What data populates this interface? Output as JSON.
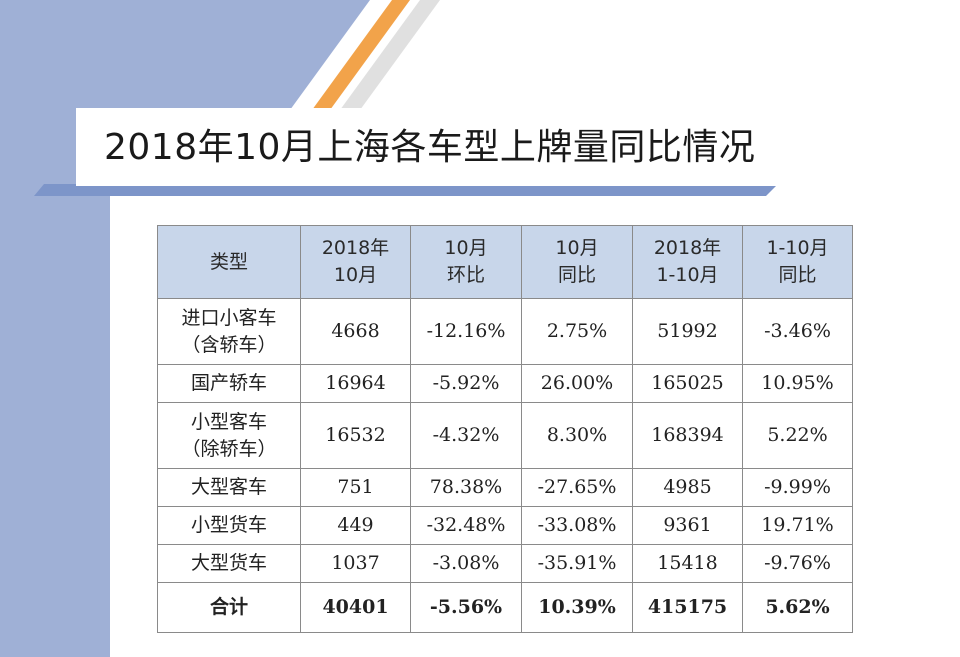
{
  "title": "2018年10月上海各车型上牌量同比情况",
  "table": {
    "headers": [
      [
        "类型"
      ],
      [
        "2018年",
        "10月"
      ],
      [
        "10月",
        "环比"
      ],
      [
        "10月",
        "同比"
      ],
      [
        "2018年",
        "1-10月"
      ],
      [
        "1-10月",
        "同比"
      ]
    ],
    "rows": [
      {
        "type": [
          "进口小客车",
          "（含轿车）"
        ],
        "cells": [
          "4668",
          "-12.16%",
          "2.75%",
          "51992",
          "-3.46%"
        ]
      },
      {
        "type": [
          "国产轿车"
        ],
        "cells": [
          "16964",
          "-5.92%",
          "26.00%",
          "165025",
          "10.95%"
        ]
      },
      {
        "type": [
          "小型客车",
          "（除轿车）"
        ],
        "cells": [
          "16532",
          "-4.32%",
          "8.30%",
          "168394",
          "5.22%"
        ]
      },
      {
        "type": [
          "大型客车"
        ],
        "cells": [
          "751",
          "78.38%",
          "-27.65%",
          "4985",
          "-9.99%"
        ]
      },
      {
        "type": [
          "小型货车"
        ],
        "cells": [
          "449",
          "-32.48%",
          "-33.08%",
          "9361",
          "19.71%"
        ]
      },
      {
        "type": [
          "大型货车"
        ],
        "cells": [
          "1037",
          "-3.08%",
          "-35.91%",
          "15418",
          "-9.76%"
        ]
      }
    ],
    "total": {
      "type": [
        "合计"
      ],
      "cells": [
        "40401",
        "-5.56%",
        "10.39%",
        "415175",
        "5.62%"
      ]
    }
  },
  "colors": {
    "accent_blue": "#9fb0d6",
    "accent_orange": "#f2a34a",
    "header_fill": "#c8d6ea"
  }
}
